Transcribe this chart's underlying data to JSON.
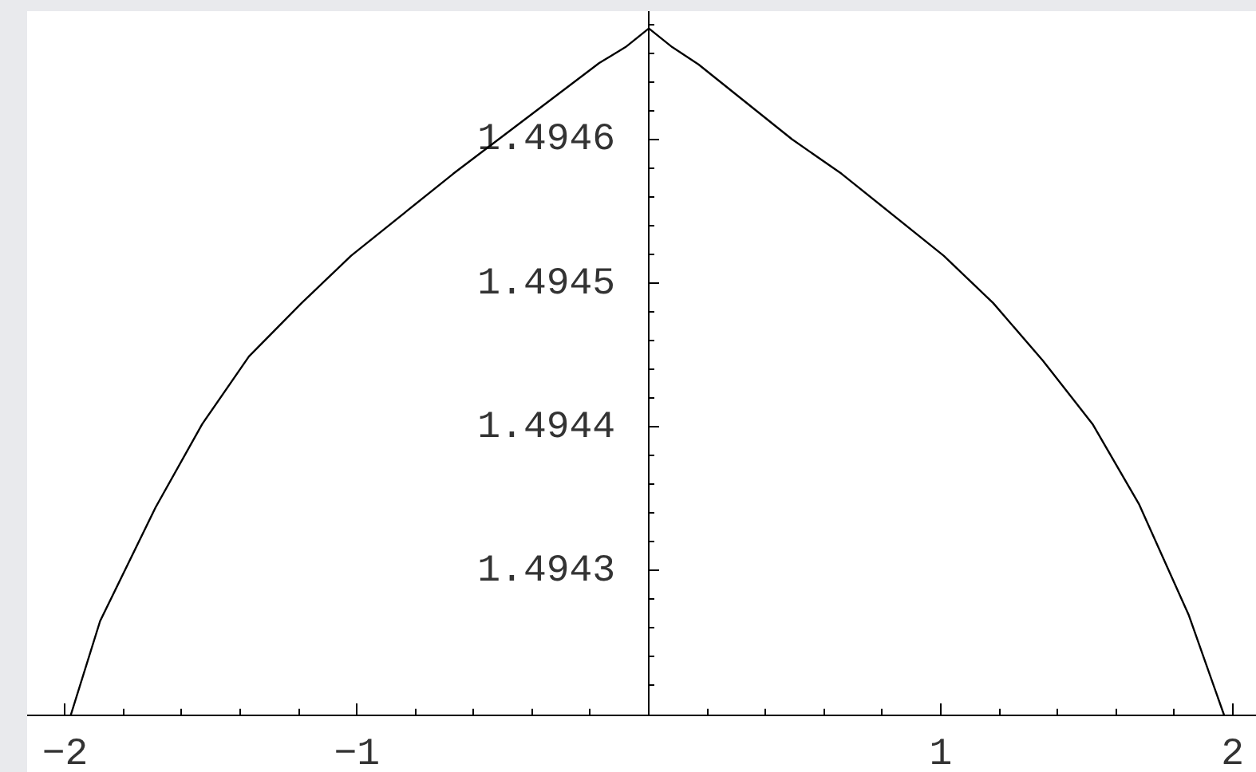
{
  "chart_data": {
    "type": "line",
    "xlim": [
      -2.13,
      2.08
    ],
    "ylim": [
      1.4942,
      1.494689
    ],
    "xticks": [
      {
        "value": -2,
        "label": "−2"
      },
      {
        "value": -1.8,
        "label": null
      },
      {
        "value": -1.6,
        "label": null
      },
      {
        "value": -1.4,
        "label": null
      },
      {
        "value": -1.2,
        "label": null
      },
      {
        "value": -1,
        "label": "−1"
      },
      {
        "value": -0.8,
        "label": null
      },
      {
        "value": -0.6,
        "label": null
      },
      {
        "value": -0.4,
        "label": null
      },
      {
        "value": -0.2,
        "label": null
      },
      {
        "value": 0,
        "label": null
      },
      {
        "value": 0.2,
        "label": null
      },
      {
        "value": 0.4,
        "label": null
      },
      {
        "value": 0.6,
        "label": null
      },
      {
        "value": 0.8,
        "label": null
      },
      1,
      {
        "value": 1.2,
        "label": null
      },
      {
        "value": 1.4,
        "label": null
      },
      {
        "value": 1.6,
        "label": null
      },
      {
        "value": 1.8,
        "label": null
      },
      2
    ],
    "yticks": [
      {
        "value": 1.4942,
        "label": null
      },
      {
        "value": 1.49422,
        "label": null
      },
      {
        "value": 1.49424,
        "label": null
      },
      {
        "value": 1.49426,
        "label": null
      },
      {
        "value": 1.49428,
        "label": null
      },
      1.4943,
      {
        "value": 1.49432,
        "label": null
      },
      {
        "value": 1.49434,
        "label": null
      },
      {
        "value": 1.49436,
        "label": null
      },
      {
        "value": 1.49438,
        "label": null
      },
      1.4944,
      {
        "value": 1.49442,
        "label": null
      },
      {
        "value": 1.49444,
        "label": null
      },
      {
        "value": 1.49446,
        "label": null
      },
      {
        "value": 1.49448,
        "label": null
      },
      1.4945,
      {
        "value": 1.49452,
        "label": null
      },
      {
        "value": 1.49454,
        "label": null
      },
      {
        "value": 1.49456,
        "label": null
      },
      {
        "value": 1.49458,
        "label": null
      },
      1.4946,
      {
        "value": 1.49462,
        "label": null
      },
      {
        "value": 1.49464,
        "label": null
      },
      {
        "value": 1.49466,
        "label": null
      },
      {
        "value": 1.49468,
        "label": null
      }
    ],
    "series": [
      {
        "color": "#000000",
        "x": [
          -1.98,
          -1.88,
          -1.69,
          -1.53,
          -1.37,
          -1.19,
          -1.02,
          -0.67,
          -0.17,
          -0.08,
          0,
          0.08,
          0.17,
          0.49,
          0.66,
          1.01,
          1.18,
          1.35,
          1.52,
          1.68,
          1.85,
          1.97
        ],
        "values": [
          1.4942,
          1.494265,
          1.494344,
          1.494402,
          1.494449,
          1.494486,
          1.494519,
          1.494576,
          1.494653,
          1.494664,
          1.494677,
          1.494664,
          1.494652,
          1.4946,
          1.494576,
          1.494519,
          1.494486,
          1.494446,
          1.494402,
          1.494346,
          1.494269,
          1.4942
        ]
      }
    ]
  }
}
